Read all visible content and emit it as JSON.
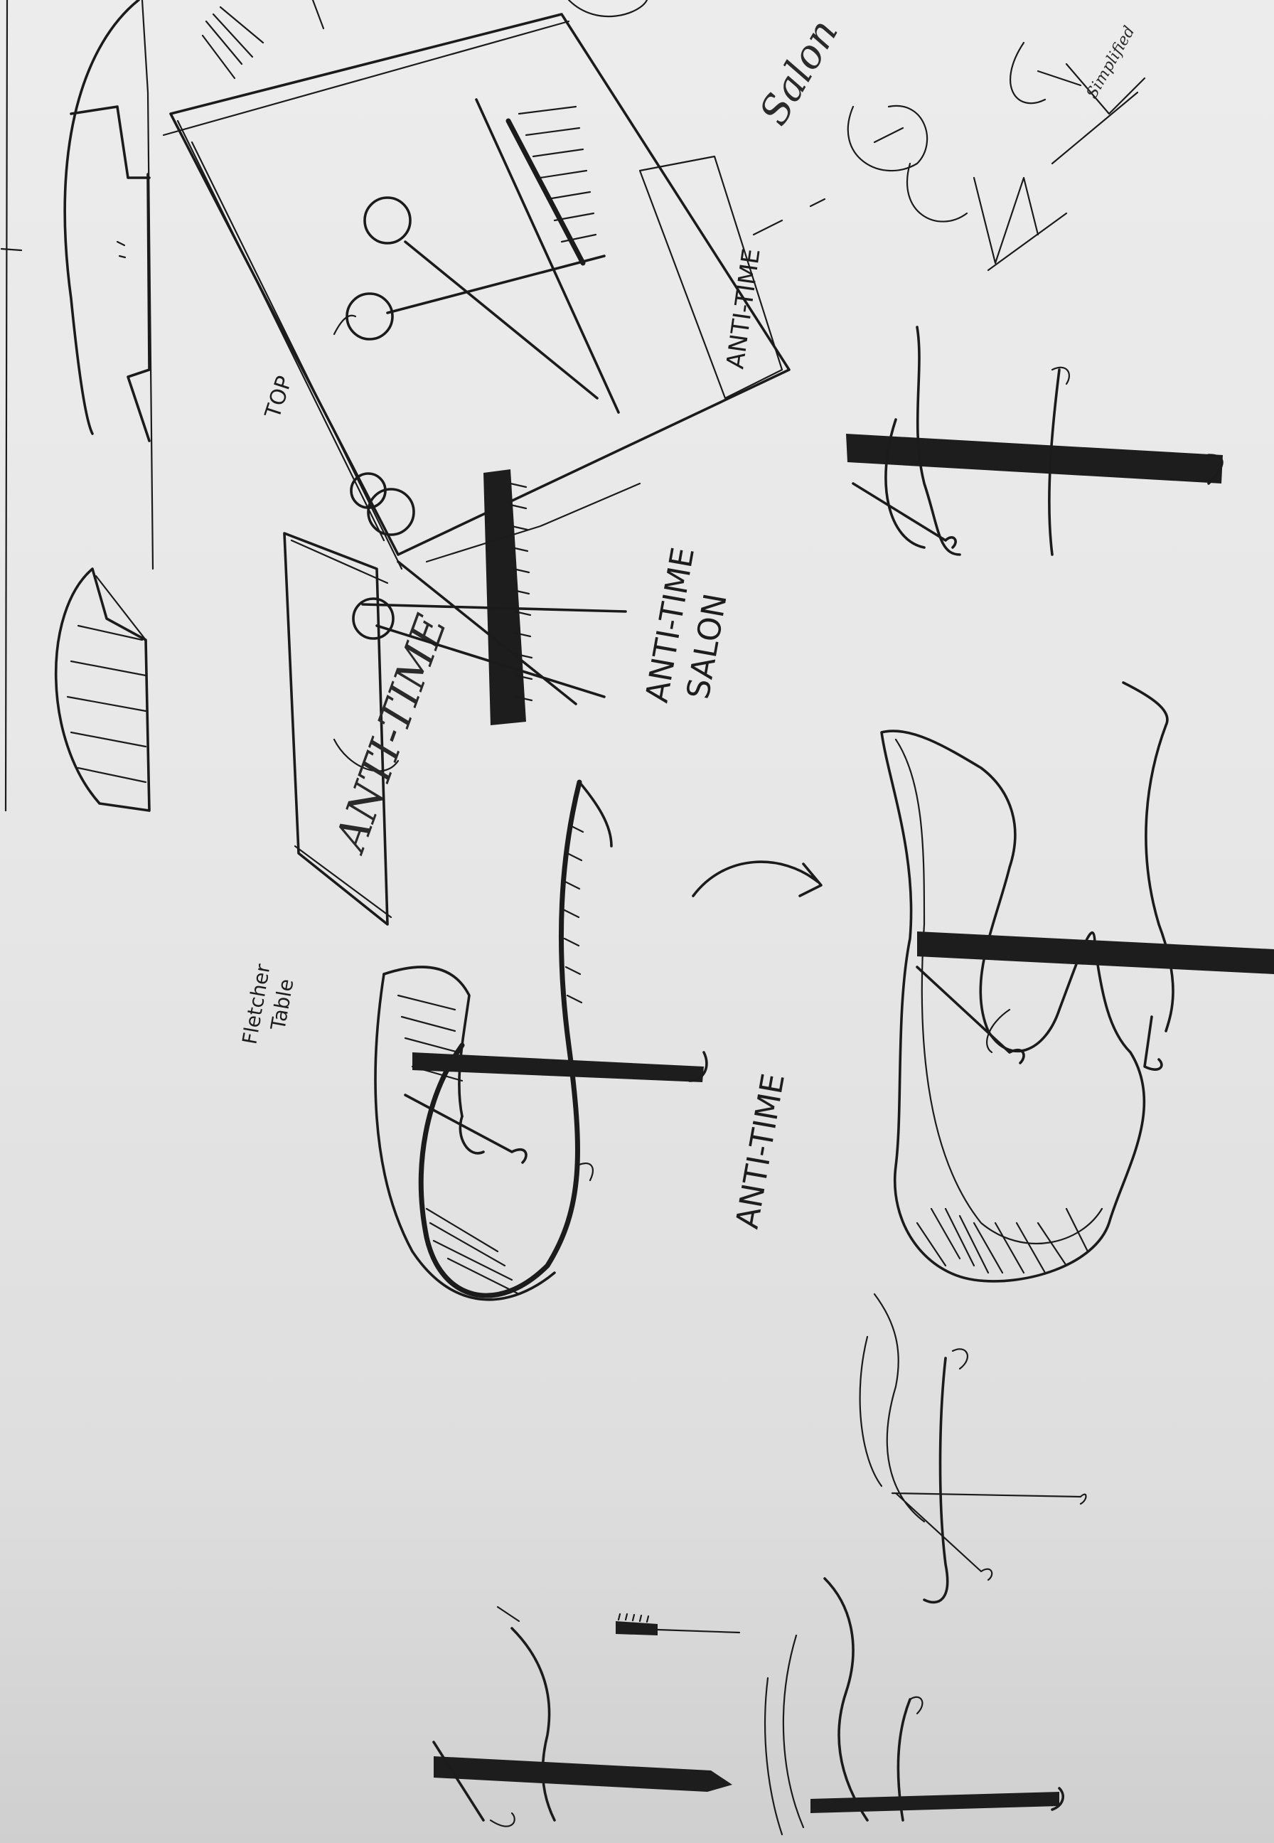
{
  "sketch": {
    "labels": {
      "top": "TOP",
      "card_side": "ANTI-TIME",
      "card_angled": "ANTI-TIME",
      "brand_line1": "ANTI-TIME",
      "brand_line2": "SALON",
      "fletcher_line1": "Fletcher",
      "fletcher_line2": "Table",
      "main_logotype": "ANTI-TIME",
      "script_note": "Salon",
      "script_small": "Simplified"
    },
    "colors": {
      "paper": "#e8e8e8",
      "ink": "#1b1b1b"
    }
  }
}
